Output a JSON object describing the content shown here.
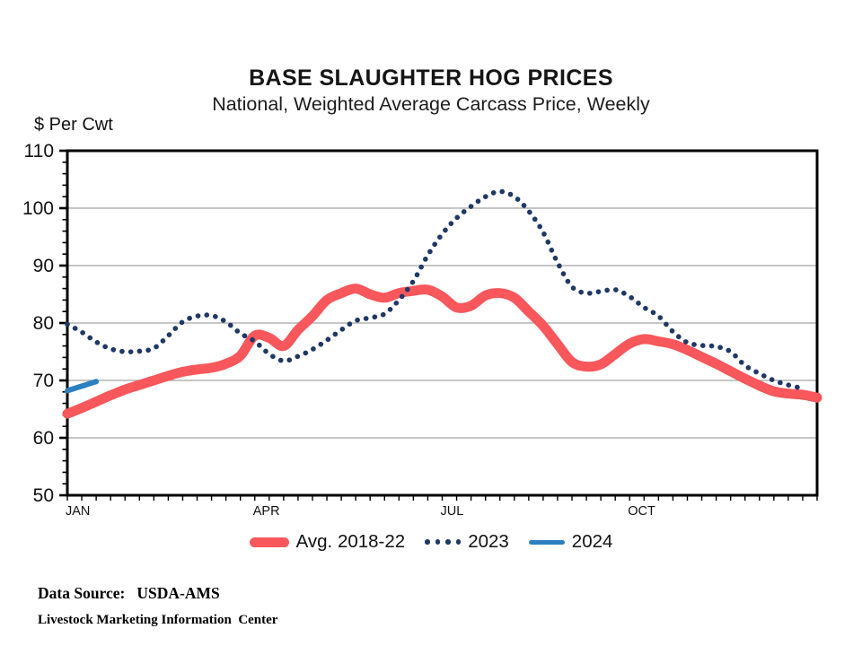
{
  "footer": {
    "source_label": "Data Source:",
    "source_value": "USDA-AMS",
    "organization": "Livestock Marketing Information  Center"
  },
  "chart_data": {
    "type": "line",
    "title": "BASE SLAUGHTER HOG PRICES",
    "subtitle": "National, Weighted Average Carcass Price, Weekly",
    "ylabel": "$ Per Cwt",
    "xlabel": "",
    "ylim": [
      50,
      110
    ],
    "ytick_step": 10,
    "y_minor_step": 2,
    "yticks": [
      50,
      60,
      70,
      80,
      90,
      100,
      110
    ],
    "x_unit": "week",
    "x_weeks": 52,
    "xticks": [
      {
        "label": "JAN",
        "week": 0
      },
      {
        "label": "APR",
        "week": 13
      },
      {
        "label": "JUL",
        "week": 26
      },
      {
        "label": "OCT",
        "week": 39
      }
    ],
    "grid": "horizontal-only",
    "grid_color": "#a3a3a3",
    "axis_color": "#000000",
    "legend_position": "bottom",
    "series": [
      {
        "name": "Avg. 2018-22",
        "style": "thick",
        "color": "#F8575C",
        "start_week": 0,
        "values": [
          64.2,
          65.2,
          66.3,
          67.4,
          68.4,
          69.2,
          70.0,
          70.8,
          71.5,
          71.9,
          72.2,
          72.9,
          74.3,
          77.8,
          77.4,
          76.0,
          78.8,
          81.2,
          84.0,
          85.2,
          86.0,
          85.0,
          84.4,
          85.2,
          85.6,
          85.8,
          84.6,
          82.7,
          83.0,
          84.8,
          85.2,
          84.4,
          82.0,
          79.5,
          76.3,
          73.2,
          72.4,
          72.8,
          74.6,
          76.4,
          77.2,
          76.8,
          76.3,
          75.3,
          74.1,
          72.9,
          71.6,
          70.3,
          69.1,
          68.1,
          67.7,
          67.5,
          67.0
        ]
      },
      {
        "name": "2023",
        "style": "dotted",
        "color": "#1F3864",
        "start_week": 0,
        "values": [
          79.8,
          78.4,
          76.7,
          75.5,
          75.0,
          75.1,
          75.6,
          77.8,
          80.2,
          81.2,
          81.3,
          80.2,
          78.2,
          76.8,
          74.6,
          73.4,
          74.2,
          75.4,
          77.0,
          78.8,
          80.4,
          80.9,
          81.6,
          84.0,
          87.3,
          91.8,
          95.5,
          98.3,
          100.3,
          102.0,
          102.9,
          102.0,
          99.5,
          95.8,
          90.5,
          86.3,
          85.2,
          85.5,
          85.8,
          84.6,
          82.7,
          81.2,
          78.5,
          76.6,
          76.1,
          75.9,
          75.0,
          72.6,
          71.2,
          70.0,
          69.2,
          68.6
        ]
      },
      {
        "name": "2024",
        "style": "solid",
        "color": "#2C7FC0",
        "start_week": 0,
        "values": [
          68.2,
          69.0,
          69.8
        ]
      }
    ]
  }
}
